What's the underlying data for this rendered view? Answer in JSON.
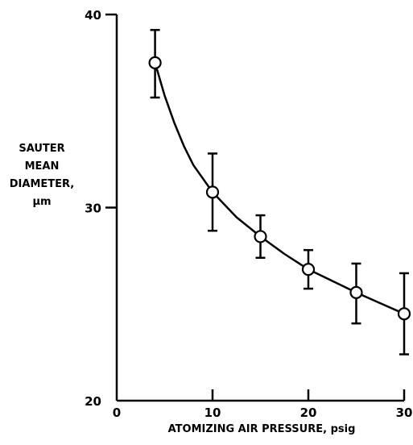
{
  "chart_data": {
    "type": "scatter",
    "xlabel": "ATOMIZING AIR PRESSURE, psig",
    "ylabel_lines": [
      "SAUTER",
      "MEAN",
      "DIAMETER,",
      "μm"
    ],
    "xlim": [
      0,
      30
    ],
    "ylim": [
      20,
      40
    ],
    "x_ticks": [
      0,
      10,
      20,
      30
    ],
    "y_ticks": [
      20,
      30,
      40
    ],
    "grid": false,
    "series": [
      {
        "x": [
          4,
          10,
          15,
          20,
          25,
          30
        ],
        "y": [
          37.5,
          30.8,
          28.5,
          26.8,
          25.6,
          24.5
        ],
        "y_err_low": [
          35.7,
          28.8,
          27.4,
          25.8,
          24.0,
          22.4
        ],
        "y_err_high": [
          39.2,
          32.8,
          29.6,
          27.8,
          27.1,
          26.6
        ]
      }
    ],
    "fit_curve": {
      "x": [
        4,
        5,
        6,
        7,
        8,
        10,
        12.5,
        15,
        17.5,
        20,
        22.5,
        25,
        27.5,
        30
      ],
      "y": [
        37.5,
        35.8,
        34.4,
        33.2,
        32.2,
        30.8,
        29.5,
        28.5,
        27.6,
        26.8,
        26.2,
        25.6,
        25.05,
        24.5
      ]
    }
  }
}
